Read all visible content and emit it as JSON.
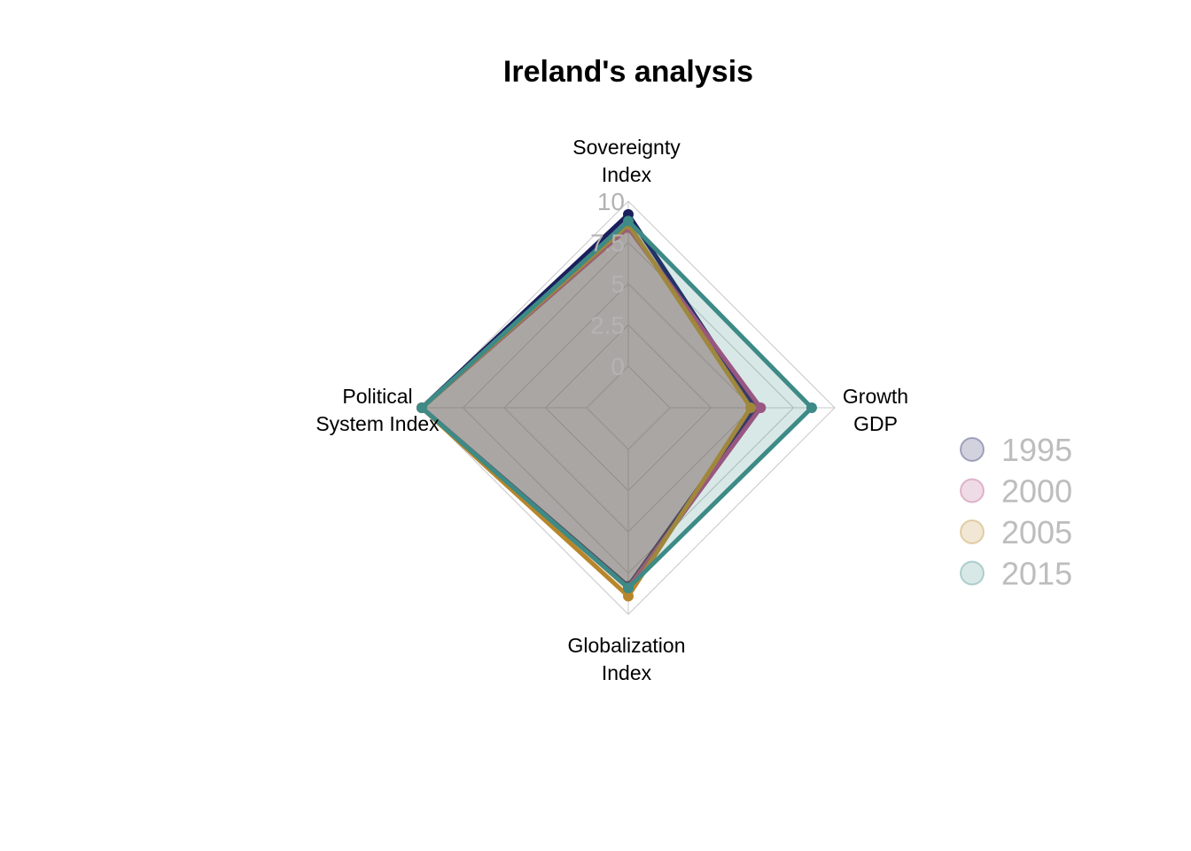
{
  "chart_data": {
    "type": "radar",
    "title": "Ireland's analysis",
    "axes": [
      [
        "Sovereignty",
        "Index"
      ],
      [
        "Growth",
        "GDP"
      ],
      [
        "Globalization",
        "Index"
      ],
      [
        "Political",
        "System Index"
      ]
    ],
    "rlim": [
      0,
      10
    ],
    "ticks": [
      "0",
      "2.5",
      "5",
      "7.5",
      "10"
    ],
    "tick_values": [
      0,
      2.5,
      5,
      7.5,
      10
    ],
    "grid": true,
    "legend_position": "right",
    "series": [
      {
        "name": "1995",
        "color": "#1b1f5c",
        "values": [
          9.2,
          5.2,
          8.3,
          10.0
        ]
      },
      {
        "name": "2000",
        "color": "#b04a80",
        "values": [
          8.4,
          5.5,
          8.4,
          10.0
        ]
      },
      {
        "name": "2005",
        "color": "#b8862a",
        "values": [
          8.6,
          4.9,
          8.9,
          10.0
        ]
      },
      {
        "name": "2015",
        "color": "#3d8a86",
        "values": [
          8.8,
          8.6,
          8.4,
          10.0
        ]
      }
    ]
  }
}
